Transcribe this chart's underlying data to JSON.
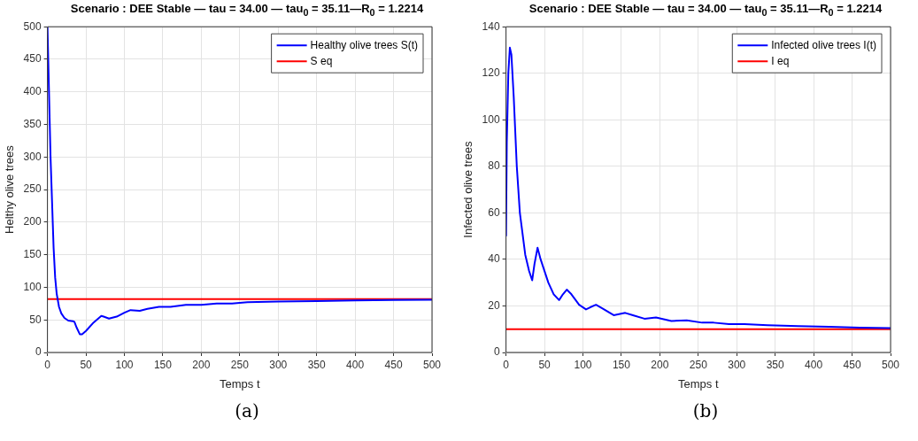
{
  "chart_data": [
    {
      "type": "line",
      "title": "Scenario : DEE Stable — tau = 34.00 — tau$_{0}$ = 35.11—R$_{0}$ = 1.2214",
      "xlabel": "Temps t",
      "ylabel": "Helthy olive trees",
      "xlim": [
        0,
        500
      ],
      "xticks": [
        0,
        50,
        100,
        150,
        200,
        250,
        300,
        350,
        400,
        450,
        500
      ],
      "ylim": [
        0,
        500
      ],
      "yticks": [
        0,
        50,
        100,
        150,
        200,
        250,
        300,
        350,
        400,
        450,
        500
      ],
      "grid": true,
      "legend": "top right",
      "annotations": [
        "(a)"
      ],
      "series": [
        {
          "name": "Healthy olive trees S(t)",
          "color": "#0000ff",
          "x": [
            0,
            2,
            4,
            6,
            8,
            10,
            12,
            15,
            18,
            22,
            27,
            33,
            35,
            38,
            42,
            45,
            50,
            60,
            70,
            73,
            80,
            90,
            100,
            108,
            120,
            130,
            145,
            160,
            180,
            200,
            220,
            240,
            260,
            300,
            350,
            400,
            450,
            500
          ],
          "values": [
            500,
            400,
            300,
            230,
            160,
            115,
            90,
            70,
            60,
            53,
            49,
            48,
            47,
            38,
            28,
            28,
            33,
            46,
            56,
            55,
            52,
            55,
            61,
            65,
            64,
            67,
            70,
            70,
            73,
            73,
            75,
            75,
            77,
            78,
            79,
            80,
            80.5,
            81
          ]
        },
        {
          "name": "S eq",
          "color": "#ff0000",
          "x": [
            0,
            500
          ],
          "values": [
            82,
            82
          ]
        }
      ]
    },
    {
      "type": "line",
      "title": "Scenario : DEE Stable — tau = 34.00 — tau$_{0}$ = 35.11—R$_{0}$ = 1.2214",
      "xlabel": "Temps t",
      "ylabel": "Infected olive trees",
      "xlim": [
        0,
        500
      ],
      "xticks": [
        0,
        50,
        100,
        150,
        200,
        250,
        300,
        350,
        400,
        450,
        500
      ],
      "ylim": [
        0,
        140
      ],
      "yticks": [
        0,
        20,
        40,
        60,
        80,
        100,
        120,
        140
      ],
      "grid": true,
      "legend": "top right",
      "annotations": [
        "(b)"
      ],
      "series": [
        {
          "name": "Infected olive trees I(t)",
          "color": "#0000ff",
          "x": [
            0,
            1,
            3,
            5,
            7,
            10,
            14,
            18,
            25,
            30,
            34,
            37,
            41,
            45,
            55,
            62,
            69,
            74,
            79,
            85,
            95,
            104,
            110,
            117,
            125,
            140,
            155,
            165,
            180,
            195,
            215,
            235,
            255,
            270,
            290,
            310,
            340,
            380,
            420,
            460,
            500
          ],
          "values": [
            50,
            90,
            120,
            131,
            128,
            110,
            80,
            60,
            42,
            35,
            31,
            38,
            45,
            40,
            30,
            25,
            22.5,
            25,
            27,
            25,
            20.5,
            18.5,
            19.5,
            20.5,
            19,
            16,
            17,
            16,
            14.5,
            15,
            13.5,
            13.8,
            12.8,
            12.8,
            12.2,
            12.2,
            11.7,
            11.3,
            11,
            10.7,
            10.5
          ]
        },
        {
          "name": "I eq",
          "color": "#ff0000",
          "x": [
            0,
            500
          ],
          "values": [
            10,
            10
          ]
        }
      ]
    }
  ]
}
